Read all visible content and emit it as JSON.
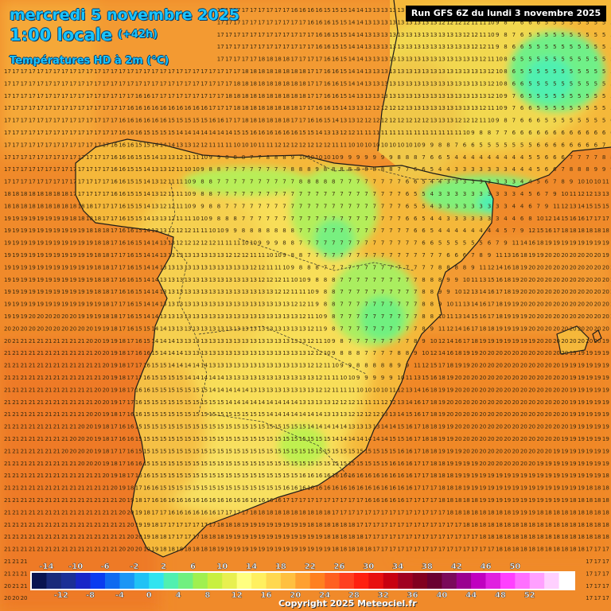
{
  "header": {
    "date": "mercredi 5 novembre 2025",
    "hour": "1:00 locale",
    "lead": "(+42h)",
    "parameter": "Températures HD à 2m (°C)"
  },
  "run_label": "Run GFS 6Z du lundi 3 novembre 2025",
  "copyright": "Copyright 2025 Meteociel.fr",
  "legend": {
    "colors": [
      "#0a1450",
      "#1a2a7a",
      "#1c2f96",
      "#1826c8",
      "#0a3cf0",
      "#0f6af0",
      "#1a96f5",
      "#20c2f5",
      "#30e4f0",
      "#50f0b0",
      "#70f080",
      "#a0f050",
      "#c8f040",
      "#e8f050",
      "#ffff80",
      "#fff060",
      "#ffd850",
      "#ffc040",
      "#ffa030",
      "#ff8020",
      "#ff6020",
      "#ff4020",
      "#ff2010",
      "#e81010",
      "#c80010",
      "#a00020",
      "#820020",
      "#6a0030",
      "#7a0a5a",
      "#9a0090",
      "#c000c0",
      "#e020e0",
      "#ff40ff",
      "#ff70ff",
      "#ffa0ff",
      "#ffd0ff",
      "#ffffff"
    ],
    "top_labels": [
      "-14",
      "-10",
      "-6",
      "-2",
      "2",
      "6",
      "10",
      "14",
      "18",
      "22",
      "26",
      "30",
      "34",
      "38",
      "42",
      "46",
      "50"
    ],
    "bottom_labels": [
      "-12",
      "-8",
      "-4",
      "0",
      "4",
      "8",
      "12",
      "16",
      "20",
      "24",
      "28",
      "32",
      "36",
      "40",
      "44",
      "48",
      "52"
    ]
  },
  "temperature_zones": [
    {
      "region": "Atlantique nord-ouest",
      "value": 17
    },
    {
      "region": "Golfe de Gascogne",
      "value": 18
    },
    {
      "region": "Atlantique ouest",
      "value": 19
    },
    {
      "region": "Atlantique sud-ouest",
      "value": 21
    },
    {
      "region": "Méditerranée",
      "value": 20
    },
    {
      "region": "Mer d'Alboran",
      "value": 19
    },
    {
      "region": "Meseta centrale",
      "value": 13
    },
    {
      "region": "Andalousie",
      "value": 15
    },
    {
      "region": "Cordillère cantabrique",
      "value": 7
    },
    {
      "region": "Système ibérique",
      "value": 7
    },
    {
      "region": "Pyrénées",
      "value": 3
    },
    {
      "region": "Sud-ouest de la France",
      "value": 13
    },
    {
      "region": "Massif central",
      "value": 5
    }
  ]
}
